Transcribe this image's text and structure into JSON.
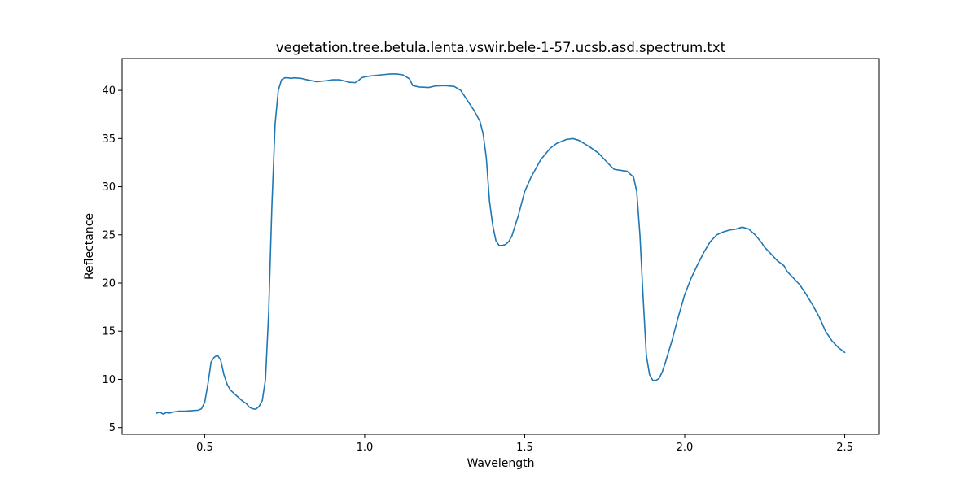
{
  "chart_data": {
    "type": "line",
    "title": "vegetation.tree.betula.lenta.vswir.bele-1-57.ucsb.asd.spectrum.txt",
    "xlabel": "Wavelength",
    "ylabel": "Reflectance",
    "xlim": [
      0.242,
      2.608
    ],
    "ylim": [
      4.3,
      43.3
    ],
    "xticks": [
      0.5,
      1.0,
      1.5,
      2.0,
      2.5
    ],
    "xtick_labels": [
      "0.5",
      "1.0",
      "1.5",
      "2.0",
      "2.5"
    ],
    "yticks": [
      5,
      10,
      15,
      20,
      25,
      30,
      35,
      40
    ],
    "ytick_labels": [
      "5",
      "10",
      "15",
      "20",
      "25",
      "30",
      "35",
      "40"
    ],
    "grid": false,
    "colors": {
      "line": "#1f77b4"
    },
    "series": [
      {
        "x": [
          0.35,
          0.36,
          0.37,
          0.38,
          0.39,
          0.4,
          0.42,
          0.44,
          0.46,
          0.48,
          0.49,
          0.5,
          0.51,
          0.52,
          0.53,
          0.54,
          0.55,
          0.56,
          0.57,
          0.58,
          0.59,
          0.6,
          0.62,
          0.63,
          0.64,
          0.65,
          0.66,
          0.67,
          0.68,
          0.69,
          0.7,
          0.71,
          0.72,
          0.73,
          0.74,
          0.75,
          0.76,
          0.77,
          0.78,
          0.8,
          0.82,
          0.85,
          0.88,
          0.9,
          0.92,
          0.94,
          0.95,
          0.97,
          0.98,
          0.99,
          1.0,
          1.02,
          1.05,
          1.08,
          1.1,
          1.12,
          1.14,
          1.15,
          1.17,
          1.2,
          1.22,
          1.25,
          1.28,
          1.3,
          1.32,
          1.34,
          1.36,
          1.37,
          1.38,
          1.39,
          1.4,
          1.41,
          1.42,
          1.43,
          1.44,
          1.45,
          1.46,
          1.48,
          1.5,
          1.52,
          1.55,
          1.58,
          1.6,
          1.63,
          1.65,
          1.67,
          1.7,
          1.73,
          1.75,
          1.77,
          1.78,
          1.8,
          1.82,
          1.84,
          1.85,
          1.86,
          1.87,
          1.88,
          1.89,
          1.9,
          1.91,
          1.92,
          1.93,
          1.94,
          1.96,
          1.98,
          2.0,
          2.02,
          2.04,
          2.06,
          2.08,
          2.1,
          2.12,
          2.14,
          2.16,
          2.18,
          2.2,
          2.22,
          2.24,
          2.25,
          2.27,
          2.29,
          2.31,
          2.32,
          2.34,
          2.36,
          2.38,
          2.4,
          2.42,
          2.44,
          2.46,
          2.48,
          2.5
        ],
        "y": [
          6.5,
          6.6,
          6.4,
          6.55,
          6.5,
          6.6,
          6.7,
          6.7,
          6.75,
          6.8,
          6.95,
          7.6,
          9.5,
          11.8,
          12.3,
          12.5,
          12.0,
          10.5,
          9.5,
          8.9,
          8.6,
          8.3,
          7.7,
          7.5,
          7.1,
          6.95,
          6.9,
          7.2,
          7.8,
          10.0,
          17.0,
          28.0,
          36.5,
          40.0,
          41.1,
          41.3,
          41.3,
          41.25,
          41.3,
          41.25,
          41.1,
          40.9,
          41.0,
          41.1,
          41.1,
          40.95,
          40.85,
          40.8,
          41.0,
          41.3,
          41.4,
          41.5,
          41.6,
          41.7,
          41.7,
          41.6,
          41.2,
          40.5,
          40.35,
          40.3,
          40.45,
          40.5,
          40.4,
          40.0,
          39.0,
          38.0,
          36.8,
          35.5,
          33.0,
          28.5,
          26.0,
          24.4,
          23.9,
          23.9,
          24.0,
          24.3,
          24.9,
          27.0,
          29.5,
          31.0,
          32.8,
          34.0,
          34.5,
          34.9,
          35.0,
          34.8,
          34.2,
          33.5,
          32.8,
          32.1,
          31.8,
          31.7,
          31.6,
          31.0,
          29.5,
          25.0,
          18.5,
          12.5,
          10.5,
          9.9,
          9.9,
          10.1,
          10.8,
          11.8,
          14.0,
          16.5,
          18.8,
          20.5,
          21.9,
          23.2,
          24.3,
          25.0,
          25.3,
          25.5,
          25.6,
          25.8,
          25.6,
          25.0,
          24.2,
          23.7,
          23.0,
          22.3,
          21.8,
          21.2,
          20.5,
          19.8,
          18.8,
          17.7,
          16.5,
          15.0,
          14.0,
          13.3,
          12.8
        ]
      }
    ]
  }
}
